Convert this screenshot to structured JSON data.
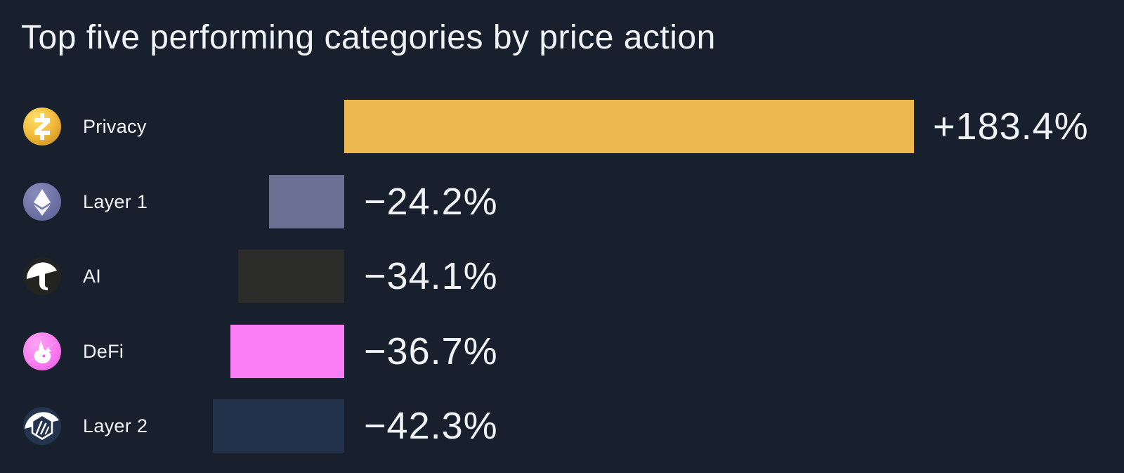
{
  "chart_data": {
    "type": "bar",
    "orientation": "horizontal",
    "title": "Top five performing categories by price action",
    "xlabel": "",
    "ylabel": "",
    "grid": false,
    "legend_position": null,
    "xlim": [
      -50,
      190
    ],
    "unit": "%",
    "categories": [
      "Privacy",
      "Layer 1",
      "AI",
      "DeFi",
      "Layer 2"
    ],
    "values": [
      183.4,
      -24.2,
      -34.1,
      -36.7,
      -42.3
    ],
    "value_labels": [
      "+183.4%",
      "−24.2%",
      "−34.1%",
      "−36.7%",
      "−42.3%"
    ],
    "bar_colors": [
      "#EDB84D",
      "#6B7095",
      "#2B2B29",
      "#F97EF5",
      "#22324A"
    ],
    "icons": [
      "zcash-icon",
      "ethereum-icon",
      "bittensor-tao-icon",
      "uniswap-icon",
      "arbitrum-icon"
    ]
  },
  "colors": {
    "background": "#18202D",
    "text_primary": "#F0F3F6"
  }
}
